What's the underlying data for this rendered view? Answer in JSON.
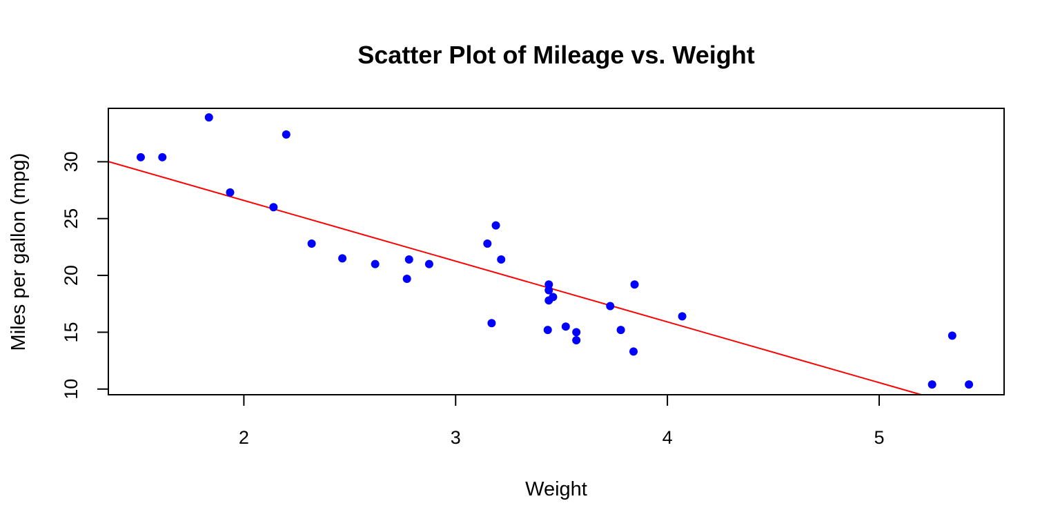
{
  "chart_data": {
    "type": "scatter",
    "title": "Scatter Plot of Mileage vs. Weight",
    "xlabel": "Weight",
    "ylabel": "Miles per gallon (mpg)",
    "xlim": [
      1.36,
      5.59
    ],
    "ylim": [
      9.5,
      34.7
    ],
    "xticks": [
      2,
      3,
      4,
      5
    ],
    "yticks": [
      10,
      15,
      20,
      25,
      30
    ],
    "grid": false,
    "legend": "none",
    "point_color": "#0000FF",
    "line_color": "#FF0000",
    "points": [
      {
        "x": 2.62,
        "y": 21.0
      },
      {
        "x": 2.875,
        "y": 21.0
      },
      {
        "x": 2.32,
        "y": 22.8
      },
      {
        "x": 3.215,
        "y": 21.4
      },
      {
        "x": 3.44,
        "y": 18.7
      },
      {
        "x": 3.46,
        "y": 18.1
      },
      {
        "x": 3.57,
        "y": 14.3
      },
      {
        "x": 3.19,
        "y": 24.4
      },
      {
        "x": 3.15,
        "y": 22.8
      },
      {
        "x": 3.44,
        "y": 19.2
      },
      {
        "x": 3.44,
        "y": 17.8
      },
      {
        "x": 4.07,
        "y": 16.4
      },
      {
        "x": 3.73,
        "y": 17.3
      },
      {
        "x": 3.78,
        "y": 15.2
      },
      {
        "x": 5.25,
        "y": 10.4
      },
      {
        "x": 5.424,
        "y": 10.4
      },
      {
        "x": 5.345,
        "y": 14.7
      },
      {
        "x": 2.2,
        "y": 32.4
      },
      {
        "x": 1.615,
        "y": 30.4
      },
      {
        "x": 1.835,
        "y": 33.9
      },
      {
        "x": 2.465,
        "y": 21.5
      },
      {
        "x": 3.52,
        "y": 15.5
      },
      {
        "x": 3.435,
        "y": 15.2
      },
      {
        "x": 3.84,
        "y": 13.3
      },
      {
        "x": 3.845,
        "y": 19.2
      },
      {
        "x": 1.935,
        "y": 27.3
      },
      {
        "x": 2.14,
        "y": 26.0
      },
      {
        "x": 1.513,
        "y": 30.4
      },
      {
        "x": 3.17,
        "y": 15.8
      },
      {
        "x": 2.77,
        "y": 19.7
      },
      {
        "x": 3.57,
        "y": 15.0
      },
      {
        "x": 2.78,
        "y": 21.4
      }
    ],
    "regression_line": {
      "intercept": 37.285,
      "slope": -5.344
    }
  }
}
